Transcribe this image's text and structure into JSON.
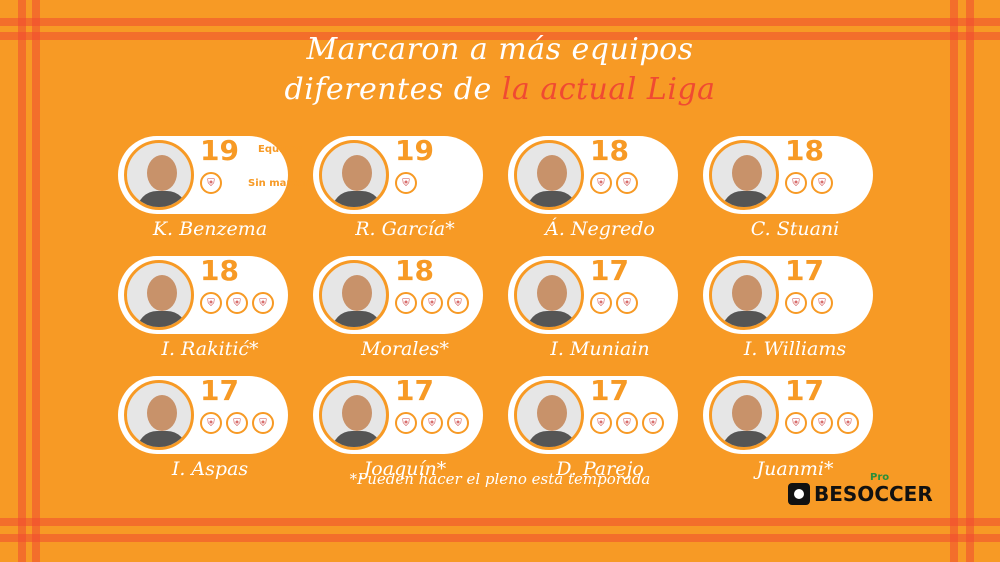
{
  "title": {
    "line1": "Marcaron a más equipos",
    "line2_plain": "diferentes de ",
    "line2_highlight": "la actual Liga"
  },
  "legend": {
    "teams": "Equipos",
    "not_scored": "Sin marcar"
  },
  "players": [
    {
      "name": "K. Benzema",
      "count": "19",
      "crests": [
        "crest"
      ]
    },
    {
      "name": "R. García*",
      "count": "19",
      "crests": [
        "crest"
      ]
    },
    {
      "name": "Á. Negredo",
      "count": "18",
      "crests": [
        "crest",
        "crest"
      ]
    },
    {
      "name": "C. Stuani",
      "count": "18",
      "crests": [
        "crest",
        "crest"
      ]
    },
    {
      "name": "I. Rakitić*",
      "count": "18",
      "crests": [
        "crest",
        "crest",
        "crest"
      ]
    },
    {
      "name": "Morales*",
      "count": "18",
      "crests": [
        "crest",
        "crest",
        "crest"
      ]
    },
    {
      "name": "I. Muniain",
      "count": "17",
      "crests": [
        "crest",
        "crest"
      ]
    },
    {
      "name": "I. Williams",
      "count": "17",
      "crests": [
        "crest",
        "crest"
      ]
    },
    {
      "name": "I. Aspas",
      "count": "17",
      "crests": [
        "crest",
        "crest",
        "crest"
      ]
    },
    {
      "name": "Joaquín*",
      "count": "17",
      "crests": [
        "crest",
        "crest",
        "crest"
      ]
    },
    {
      "name": "D. Parejo",
      "count": "17",
      "crests": [
        "crest",
        "crest",
        "crest"
      ]
    },
    {
      "name": "Juanmi*",
      "count": "17",
      "crests": [
        "crest",
        "crest",
        "crest"
      ]
    }
  ],
  "footnote": "*Pueden hacer el pleno esta temporada",
  "logo": {
    "text": "BESOCCER",
    "badge": "Pro"
  },
  "colors": {
    "background": "#f79a25",
    "accent": "#f04a32",
    "text": "#ffffff"
  }
}
